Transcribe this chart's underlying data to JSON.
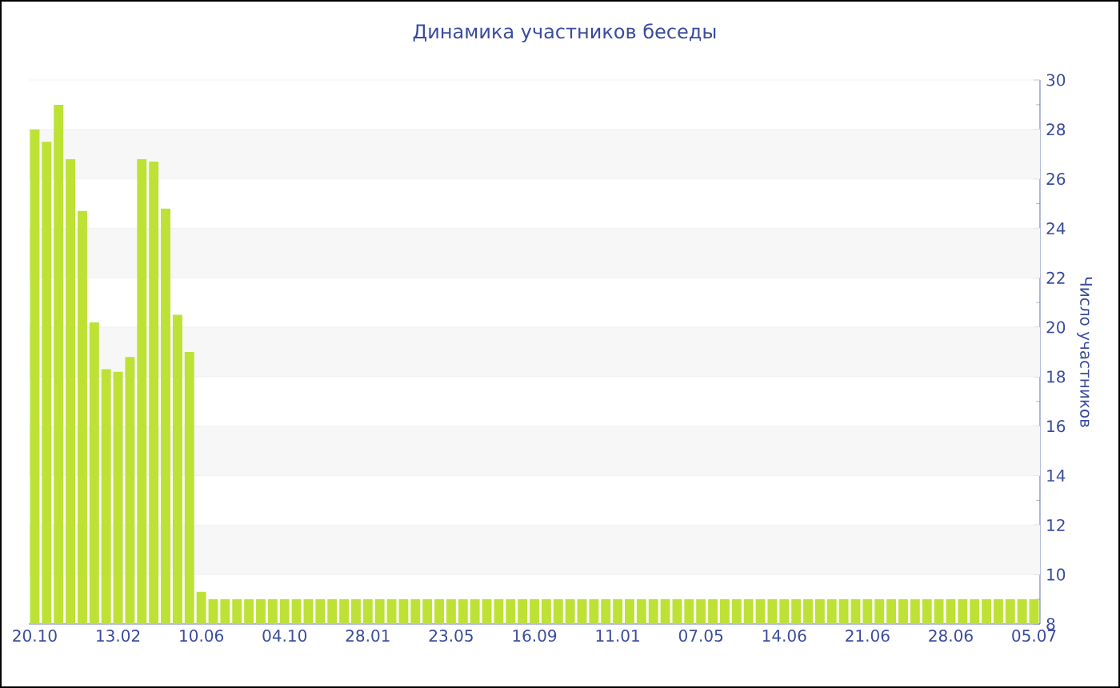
{
  "chart_data": {
    "type": "bar",
    "title": "Динамика участников беседы",
    "ylabel": "Число участников",
    "categories": [
      "20.10",
      null,
      null,
      null,
      null,
      null,
      null,
      "13.02",
      null,
      null,
      null,
      null,
      null,
      null,
      "10.06",
      null,
      null,
      null,
      null,
      null,
      null,
      "04.10",
      null,
      null,
      null,
      null,
      null,
      null,
      "28.01",
      null,
      null,
      null,
      null,
      null,
      null,
      "23.05",
      null,
      null,
      null,
      null,
      null,
      null,
      "16.09",
      null,
      null,
      null,
      null,
      null,
      null,
      "11.01",
      null,
      null,
      null,
      null,
      null,
      null,
      "07.05",
      null,
      null,
      null,
      null,
      null,
      null,
      "14.06",
      null,
      null,
      null,
      null,
      null,
      null,
      "21.06",
      null,
      null,
      null,
      null,
      null,
      null,
      "28.06",
      null,
      null,
      null,
      null,
      null,
      null,
      "05.07"
    ],
    "values": [
      28,
      27.5,
      29,
      26.8,
      24.7,
      20.2,
      18.3,
      18.2,
      18.8,
      26.8,
      26.7,
      24.8,
      20.5,
      19,
      9.3,
      9,
      9,
      9,
      9,
      9,
      9,
      9,
      9,
      9,
      9,
      9,
      9,
      9,
      9,
      9,
      9,
      9,
      9,
      9,
      9,
      9,
      9,
      9,
      9,
      9,
      9,
      9,
      9,
      9,
      9,
      9,
      9,
      9,
      9,
      9,
      9,
      9,
      9,
      9,
      9,
      9,
      9,
      9,
      9,
      9,
      9,
      9,
      9,
      9,
      9,
      9,
      9,
      9,
      9,
      9,
      9,
      9,
      9,
      9,
      9,
      9,
      9,
      9,
      9,
      9,
      9,
      9,
      9,
      9,
      9
    ],
    "color": "#bde135",
    "ylim": [
      8,
      30
    ],
    "yticks": [
      8,
      10,
      12,
      14,
      16,
      18,
      20,
      22,
      24,
      26,
      28,
      30
    ],
    "grid": "y"
  }
}
